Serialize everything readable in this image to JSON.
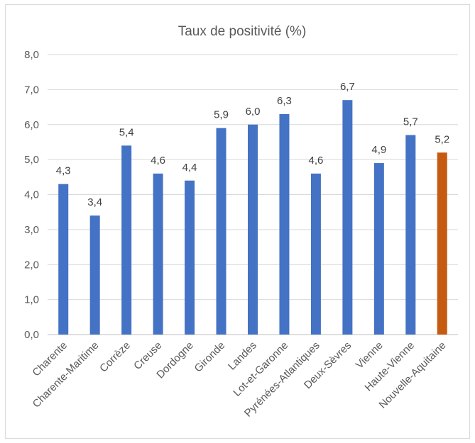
{
  "chart_data": {
    "type": "bar",
    "title": "Taux de positivité (%)",
    "xlabel": "",
    "ylabel": "",
    "ylim": [
      0,
      8
    ],
    "y_ticks": [
      "0,0",
      "1,0",
      "2,0",
      "3,0",
      "4,0",
      "5,0",
      "6,0",
      "7,0",
      "8,0"
    ],
    "grid": true,
    "legend": "none",
    "categories": [
      "Charente",
      "Charente-Maritime",
      "Corrèze",
      "Creuse",
      "Dordogne",
      "Gironde",
      "Landes",
      "Lot-et-Garonne",
      "Pyrénées-Atlantiques",
      "Deux-Sèvres",
      "Vienne",
      "Haute-Vienne",
      "Nouvelle-Aquitaine"
    ],
    "values": [
      4.3,
      3.4,
      5.4,
      4.6,
      4.4,
      5.9,
      6.0,
      6.3,
      4.6,
      6.7,
      4.9,
      5.7,
      5.2
    ],
    "data_labels": [
      "4,3",
      "3,4",
      "5,4",
      "4,6",
      "4,4",
      "5,9",
      "6,0",
      "6,3",
      "4,6",
      "6,7",
      "4,9",
      "5,7",
      "5,2"
    ],
    "colors": {
      "default": "#4472c4",
      "highlight": "#c55a11"
    },
    "highlight_category": "Nouvelle-Aquitaine"
  }
}
